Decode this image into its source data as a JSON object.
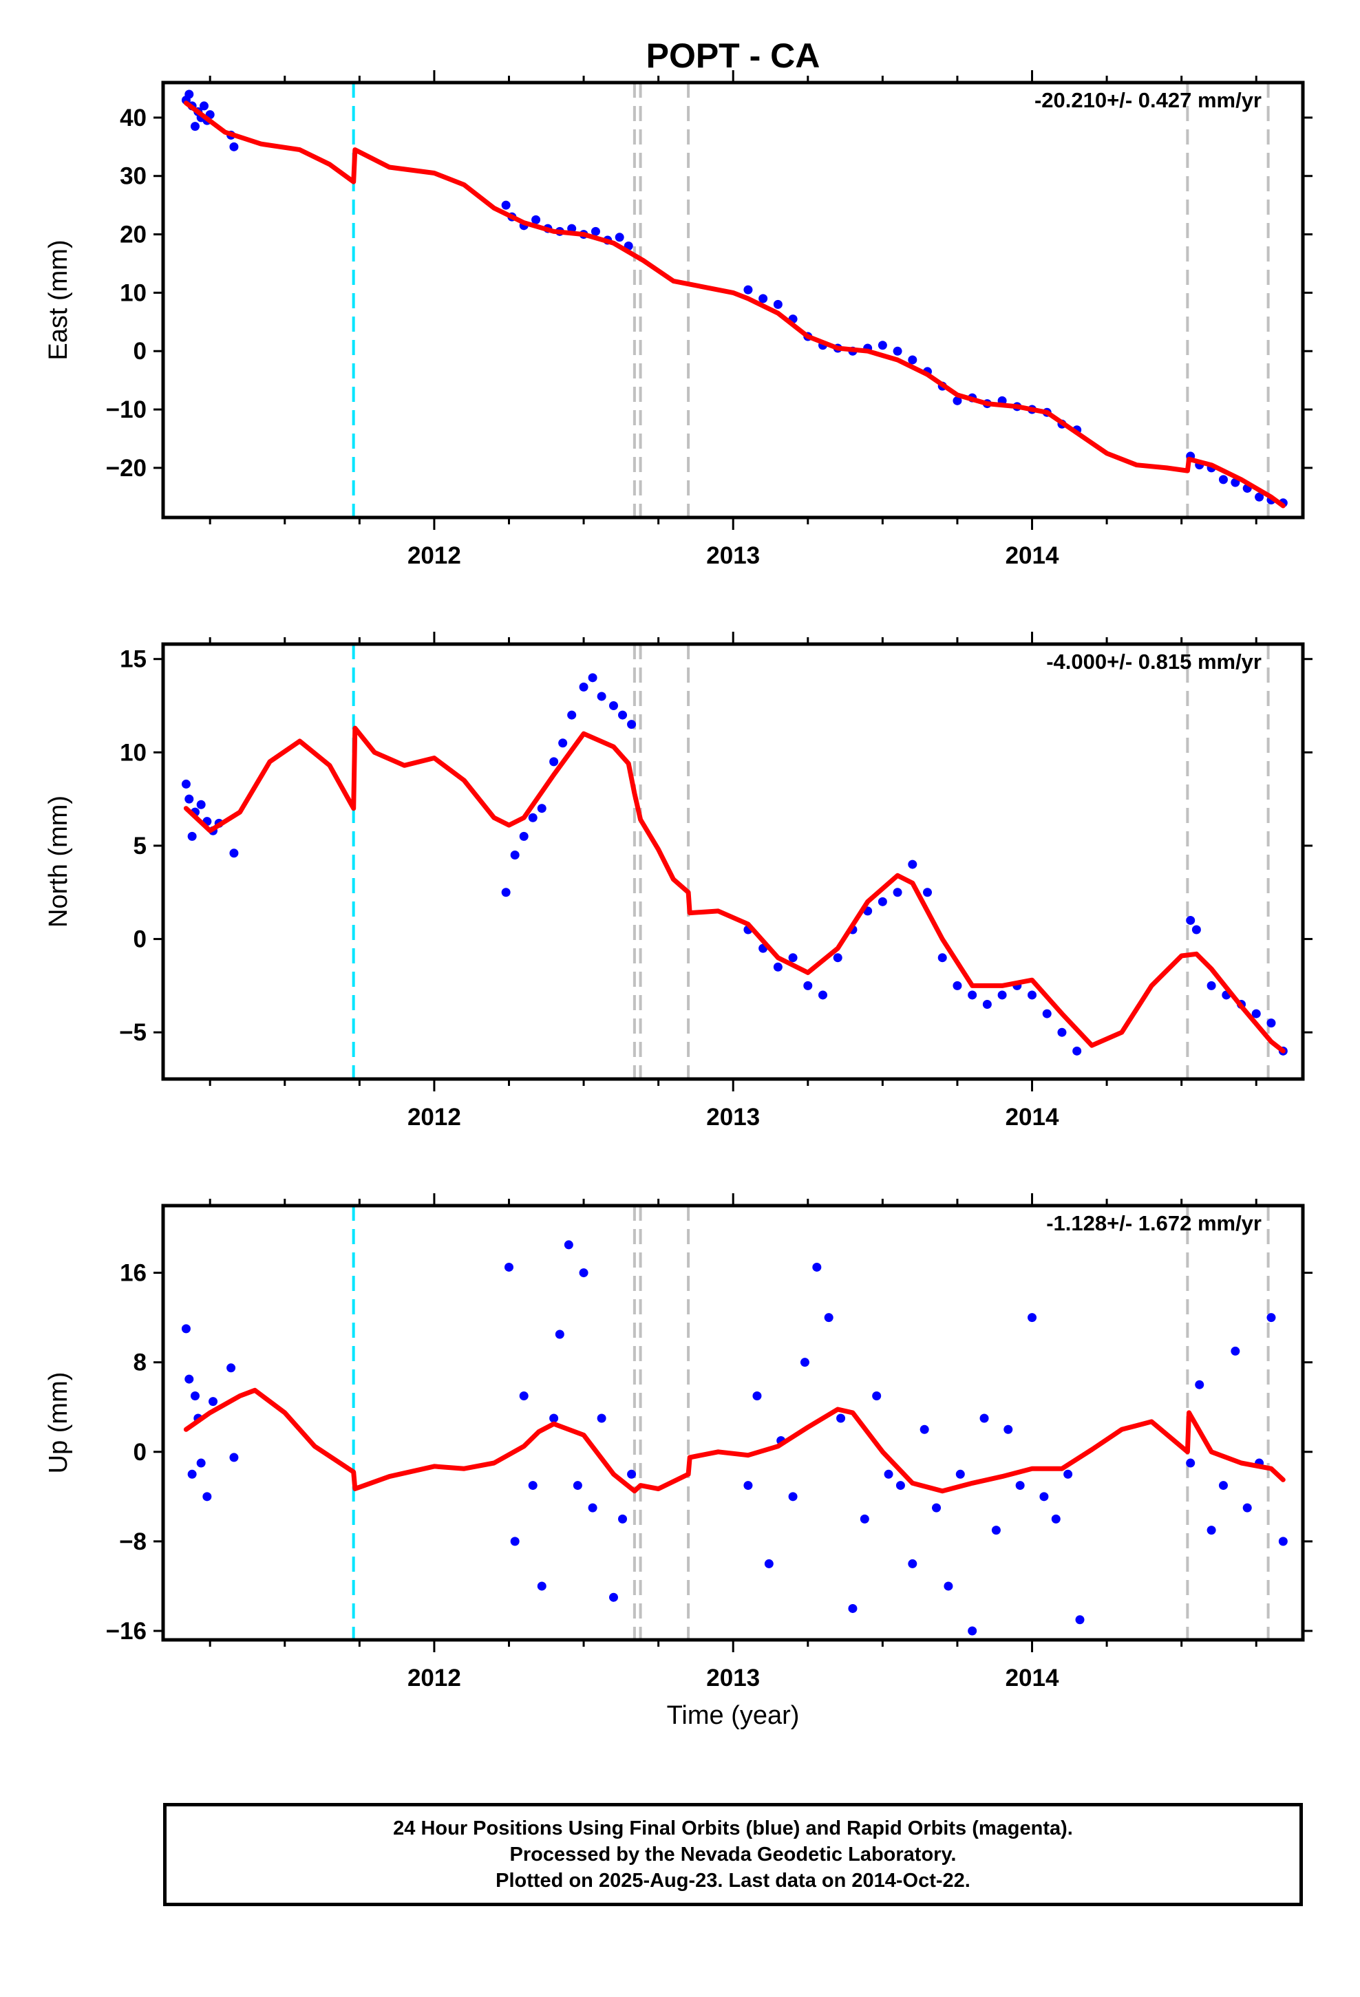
{
  "title": "POPT - CA",
  "xlabel": "Time (year)",
  "footer": {
    "line1": "24 Hour Positions Using Final Orbits (blue) and Rapid Orbits (magenta).",
    "line2": "Processed by the Nevada Geodetic Laboratory.",
    "line3": "Plotted on 2025-Aug-23. Last data on 2014-Oct-22."
  },
  "colors": {
    "points": "#0000ff",
    "model": "#ff0000",
    "equipment_line": "#00e5ff",
    "event_line": "#c0c0c0"
  },
  "chart_data": [
    {
      "type": "scatter",
      "ylabel": "East (mm)",
      "rate": "-20.210+/- 0.427 mm/yr",
      "xlim": [
        2011.093,
        2014.906
      ],
      "ylim": [
        -28.5,
        46
      ],
      "yticks": [
        -20,
        -10,
        0,
        10,
        20,
        30,
        40
      ],
      "xticks": [
        2012,
        2013,
        2014
      ],
      "equipment_lines": [
        2011.73
      ],
      "event_lines": [
        2012.67,
        2012.69,
        2012.85,
        2014.52,
        2014.79
      ],
      "model": {
        "x": [
          2011.17,
          2011.3,
          2011.42,
          2011.55,
          2011.65,
          2011.73,
          2011.735,
          2011.85,
          2012.0,
          2012.1,
          2012.2,
          2012.3,
          2012.4,
          2012.5,
          2012.6,
          2012.7,
          2012.8,
          2012.9,
          2013.0,
          2013.05,
          2013.15,
          2013.25,
          2013.35,
          2013.45,
          2013.55,
          2013.65,
          2013.75,
          2013.85,
          2013.95,
          2014.05,
          2014.15,
          2014.25,
          2014.35,
          2014.45,
          2014.52,
          2014.525,
          2014.6,
          2014.7,
          2014.8,
          2014.84
        ],
        "y": [
          42.5,
          37.5,
          35.5,
          34.5,
          32,
          29,
          34.5,
          31.5,
          30.5,
          28.5,
          24.5,
          22,
          20.5,
          20,
          18.5,
          15.5,
          12,
          11,
          10,
          9,
          6.5,
          2.5,
          0.5,
          0,
          -1.5,
          -4,
          -7.5,
          -9,
          -9.5,
          -10.5,
          -14,
          -17.5,
          -19.5,
          -20,
          -20.5,
          -18.5,
          -19.5,
          -22,
          -25,
          -26.5
        ]
      },
      "points": {
        "x": [
          2011.17,
          2011.18,
          2011.19,
          2011.2,
          2011.21,
          2011.22,
          2011.23,
          2011.24,
          2011.25,
          2011.32,
          2011.33,
          2012.24,
          2012.26,
          2012.3,
          2012.34,
          2012.38,
          2012.42,
          2012.46,
          2012.5,
          2012.54,
          2012.58,
          2012.62,
          2012.65,
          2013.05,
          2013.1,
          2013.15,
          2013.2,
          2013.25,
          2013.3,
          2013.35,
          2013.4,
          2013.45,
          2013.5,
          2013.55,
          2013.6,
          2013.65,
          2013.7,
          2013.75,
          2013.8,
          2013.85,
          2013.9,
          2013.95,
          2014.0,
          2014.05,
          2014.1,
          2014.15,
          2014.53,
          2014.56,
          2014.6,
          2014.64,
          2014.68,
          2014.72,
          2014.76,
          2014.8,
          2014.84
        ],
        "y": [
          43,
          44,
          42,
          38.5,
          41,
          40,
          42,
          39.5,
          40.5,
          37,
          35,
          25,
          23,
          21.5,
          22.5,
          21,
          20.5,
          21,
          20,
          20.5,
          19,
          19.5,
          18,
          10.5,
          9,
          8,
          5.5,
          2.5,
          1,
          0.5,
          0,
          0.5,
          1,
          0,
          -1.5,
          -3.5,
          -6,
          -8.5,
          -8,
          -9,
          -8.5,
          -9.5,
          -10,
          -10.5,
          -12.5,
          -13.5,
          -18,
          -19.5,
          -20,
          -22,
          -22.5,
          -23.5,
          -25,
          -25.5,
          -26
        ]
      }
    },
    {
      "type": "scatter",
      "ylabel": "North (mm)",
      "rate": "-4.000+/- 0.815 mm/yr",
      "xlim": [
        2011.093,
        2014.906
      ],
      "ylim": [
        -7.5,
        15.8
      ],
      "yticks": [
        -5,
        0,
        5,
        10,
        15
      ],
      "xticks": [
        2012,
        2013,
        2014
      ],
      "equipment_lines": [
        2011.73
      ],
      "event_lines": [
        2012.67,
        2012.69,
        2012.85,
        2014.52,
        2014.79
      ],
      "model": {
        "x": [
          2011.17,
          2011.25,
          2011.35,
          2011.45,
          2011.55,
          2011.65,
          2011.73,
          2011.735,
          2011.8,
          2011.9,
          2012.0,
          2012.1,
          2012.2,
          2012.25,
          2012.3,
          2012.4,
          2012.5,
          2012.6,
          2012.65,
          2012.67,
          2012.69,
          2012.75,
          2012.8,
          2012.85,
          2012.855,
          2012.95,
          2013.05,
          2013.15,
          2013.25,
          2013.35,
          2013.45,
          2013.55,
          2013.6,
          2013.7,
          2013.8,
          2013.9,
          2014.0,
          2014.1,
          2014.2,
          2014.3,
          2014.4,
          2014.5,
          2014.55,
          2014.6,
          2014.7,
          2014.8,
          2014.84
        ],
        "y": [
          7,
          5.8,
          6.8,
          9.5,
          10.6,
          9.3,
          7,
          11.3,
          10,
          9.3,
          9.7,
          8.5,
          6.5,
          6.1,
          6.5,
          8.8,
          11,
          10.3,
          9.4,
          7.8,
          6.4,
          4.8,
          3.2,
          2.5,
          1.4,
          1.5,
          0.8,
          -1,
          -1.8,
          -0.5,
          2,
          3.4,
          3,
          0,
          -2.5,
          -2.5,
          -2.2,
          -4,
          -5.7,
          -5,
          -2.5,
          -0.9,
          -0.8,
          -1.6,
          -3.6,
          -5.5,
          -6
        ]
      },
      "points": {
        "x": [
          2011.17,
          2011.18,
          2011.19,
          2011.2,
          2011.22,
          2011.24,
          2011.26,
          2011.28,
          2011.33,
          2012.24,
          2012.27,
          2012.3,
          2012.33,
          2012.36,
          2012.4,
          2012.43,
          2012.46,
          2012.5,
          2012.53,
          2012.56,
          2012.6,
          2012.63,
          2012.66,
          2013.05,
          2013.1,
          2013.15,
          2013.2,
          2013.25,
          2013.3,
          2013.35,
          2013.4,
          2013.45,
          2013.5,
          2013.55,
          2013.6,
          2013.65,
          2013.7,
          2013.75,
          2013.8,
          2013.85,
          2013.9,
          2013.95,
          2014.0,
          2014.05,
          2014.1,
          2014.15,
          2014.53,
          2014.55,
          2014.6,
          2014.65,
          2014.7,
          2014.75,
          2014.8,
          2014.84
        ],
        "y": [
          8.3,
          7.5,
          5.5,
          6.8,
          7.2,
          6.3,
          5.8,
          6.2,
          4.6,
          2.5,
          4.5,
          5.5,
          6.5,
          7,
          9.5,
          10.5,
          12,
          13.5,
          14,
          13,
          12.5,
          12,
          11.5,
          0.5,
          -0.5,
          -1.5,
          -1,
          -2.5,
          -3,
          -1,
          0.5,
          1.5,
          2,
          2.5,
          4,
          2.5,
          -1,
          -2.5,
          -3,
          -3.5,
          -3,
          -2.5,
          -3,
          -4,
          -5,
          -6,
          1,
          0.5,
          -2.5,
          -3,
          -3.5,
          -4,
          -4.5,
          -6
        ]
      }
    },
    {
      "type": "scatter",
      "ylabel": "Up (mm)",
      "rate": "-1.128+/- 1.672 mm/yr",
      "xlim": [
        2011.093,
        2014.906
      ],
      "ylim": [
        -16.8,
        22
      ],
      "yticks": [
        -16,
        -8,
        0,
        8,
        16
      ],
      "xticks": [
        2012,
        2013,
        2014
      ],
      "equipment_lines": [
        2011.73
      ],
      "event_lines": [
        2012.67,
        2012.69,
        2012.85,
        2014.52,
        2014.79
      ],
      "model": {
        "x": [
          2011.17,
          2011.25,
          2011.35,
          2011.4,
          2011.5,
          2011.6,
          2011.73,
          2011.735,
          2011.85,
          2012.0,
          2012.1,
          2012.2,
          2012.3,
          2012.35,
          2012.4,
          2012.5,
          2012.6,
          2012.67,
          2012.69,
          2012.75,
          2012.85,
          2012.855,
          2012.95,
          2013.05,
          2013.15,
          2013.25,
          2013.35,
          2013.4,
          2013.5,
          2013.6,
          2013.7,
          2013.8,
          2013.9,
          2014.0,
          2014.1,
          2014.2,
          2014.3,
          2014.4,
          2014.52,
          2014.525,
          2014.6,
          2014.7,
          2014.8,
          2014.84
        ],
        "y": [
          2,
          3.5,
          5,
          5.5,
          3.5,
          0.5,
          -1.8,
          -3.3,
          -2.2,
          -1.3,
          -1.5,
          -1,
          0.5,
          1.8,
          2.5,
          1.5,
          -2,
          -3.5,
          -3,
          -3.3,
          -2,
          -0.5,
          0,
          -0.3,
          0.5,
          2.2,
          3.8,
          3.5,
          0,
          -2.8,
          -3.5,
          -2.8,
          -2.2,
          -1.5,
          -1.5,
          0.2,
          2,
          2.7,
          0,
          3.5,
          0,
          -1,
          -1.5,
          -2.5
        ]
      },
      "points": {
        "x": [
          2011.17,
          2011.18,
          2011.19,
          2011.2,
          2011.21,
          2011.22,
          2011.24,
          2011.26,
          2011.32,
          2011.33,
          2012.25,
          2012.27,
          2012.3,
          2012.33,
          2012.36,
          2012.4,
          2012.42,
          2012.45,
          2012.48,
          2012.5,
          2012.53,
          2012.56,
          2012.6,
          2012.63,
          2012.66,
          2013.05,
          2013.08,
          2013.12,
          2013.16,
          2013.2,
          2013.24,
          2013.28,
          2013.32,
          2013.36,
          2013.4,
          2013.44,
          2013.48,
          2013.52,
          2013.56,
          2013.6,
          2013.64,
          2013.68,
          2013.72,
          2013.76,
          2013.8,
          2013.84,
          2013.88,
          2013.92,
          2013.96,
          2014.0,
          2014.04,
          2014.08,
          2014.12,
          2014.16,
          2014.53,
          2014.56,
          2014.6,
          2014.64,
          2014.68,
          2014.72,
          2014.76,
          2014.8,
          2014.84
        ],
        "y": [
          11,
          6.5,
          -2,
          5,
          3,
          -1,
          -4,
          4.5,
          7.5,
          -0.5,
          16.5,
          -8,
          5,
          -3,
          -12,
          3,
          10.5,
          18.5,
          -3,
          16,
          -5,
          3,
          -13,
          -6,
          -2,
          -3,
          5,
          -10,
          1,
          -4,
          8,
          16.5,
          12,
          3,
          -14,
          -6,
          5,
          -2,
          -3,
          -10,
          2,
          -5,
          -12,
          -2,
          -16,
          3,
          -7,
          2,
          -3,
          12,
          -4,
          -6,
          -2,
          -15,
          -1,
          6,
          -7,
          -3,
          9,
          -5,
          -1,
          12,
          -8
        ]
      }
    }
  ]
}
